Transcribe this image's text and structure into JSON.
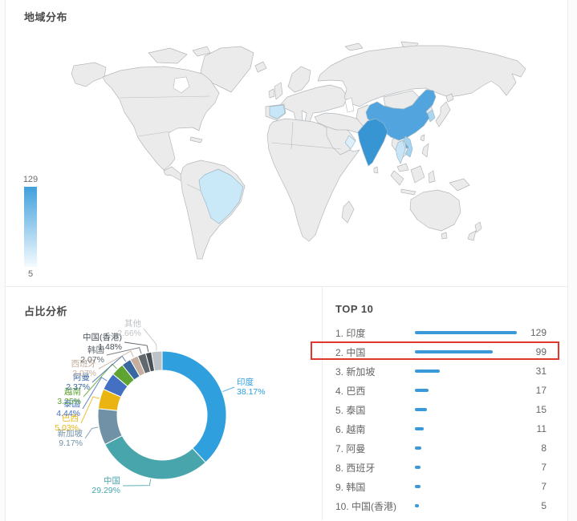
{
  "panel": {
    "title": "地域分布"
  },
  "sections": {
    "pie_title": "占比分析",
    "top10_title": "TOP 10"
  },
  "map": {
    "legend": {
      "max": "129",
      "min": "5",
      "color_top": "#41a0dc",
      "color_bottom": "#f4fbff"
    },
    "regions": [
      {
        "id": "india",
        "name": "印度",
        "color": "#3795d3"
      },
      {
        "id": "china",
        "name": "中国",
        "color": "#51a4dd"
      },
      {
        "id": "hainan",
        "name": "中国",
        "color": "#51a4dd"
      },
      {
        "id": "brazil",
        "name": "巴西",
        "color": "#c9e8f8"
      },
      {
        "id": "korea",
        "name": "韩国",
        "color": "#a9d7f1"
      },
      {
        "id": "thailand",
        "name": "泰国",
        "color": "#c8e5f7"
      },
      {
        "id": "vietnam",
        "name": "越南",
        "color": "#a5d4f0"
      },
      {
        "id": "spain",
        "name": "西班牙",
        "color": "#c7e6f7"
      },
      {
        "id": "oman",
        "name": "阿曼",
        "color": "#dceffa"
      }
    ]
  },
  "annotation": {
    "highlighted_rank": 2,
    "highlighted_name": "中国",
    "color": "#e0362b"
  },
  "chart_data": [
    {
      "type": "heatmap",
      "subtype": "choropleth-world-map",
      "title": "地域分布",
      "value_range": [
        5,
        129
      ],
      "values": {
        "印度": 129,
        "中国": 99,
        "新加坡": 31,
        "巴西": 17,
        "泰国": 15,
        "越南": 11,
        "阿曼": 8,
        "西班牙": 7,
        "韩国": 7,
        "中国(香港)": 5
      }
    },
    {
      "type": "pie",
      "title": "占比分析",
      "labels": [
        "印度",
        "中国",
        "新加坡",
        "巴西",
        "泰国",
        "越南",
        "阿曼",
        "西班牙",
        "韩国",
        "中国(香港)",
        "其他"
      ],
      "values": [
        38.17,
        29.29,
        9.17,
        5.03,
        4.44,
        3.25,
        2.37,
        2.07,
        2.07,
        1.48,
        2.66
      ],
      "percent_labels": [
        "38.17%",
        "29.29%",
        "9.17%",
        "5.03%",
        "4.44%",
        "3.25%",
        "2.37%",
        "2.07%",
        "2.07%",
        "1.48%",
        "2.66%"
      ],
      "colors": [
        "#2f9fde",
        "#48a5ac",
        "#7191a6",
        "#eab513",
        "#4470c4",
        "#5fa431",
        "#38689f",
        "#c5ae9e",
        "#61696f",
        "#474f57",
        "#bec3c7"
      ],
      "donut": true,
      "legend_position": "none"
    },
    {
      "type": "bar",
      "title": "TOP 10",
      "orientation": "horizontal",
      "categories": [
        "印度",
        "中国",
        "新加坡",
        "巴西",
        "泰国",
        "越南",
        "阿曼",
        "西班牙",
        "韩国",
        "中国(香港)"
      ],
      "values": [
        129,
        99,
        31,
        17,
        15,
        11,
        8,
        7,
        7,
        5
      ],
      "bar_color": "#3a9ad9",
      "xlim": [
        0,
        129
      ],
      "highlight_index": 1
    }
  ]
}
